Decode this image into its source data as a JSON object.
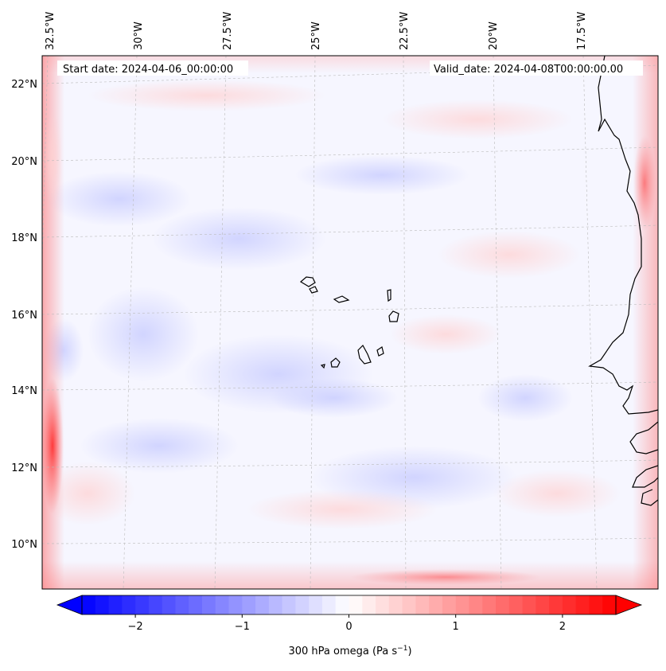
{
  "map": {
    "start_date": "Start date: 2024-04-06_00:00:00",
    "valid_date": "Valid_date: 2024-04-08T00:00:00.00",
    "lon_labels": [
      "32.5°W",
      "30°W",
      "27.5°W",
      "25°W",
      "22.5°W",
      "20°W",
      "17.5°W"
    ],
    "lat_labels": [
      "22°N",
      "20°N",
      "18°N",
      "16°N",
      "14°N",
      "12°N",
      "10°N"
    ],
    "field": "300 hPa omega"
  },
  "colorbar": {
    "label_main": "300 hPa omega (Pa s",
    "label_exp": "−1",
    "label_close": ")",
    "ticks": [
      "−2",
      "−1",
      "0",
      "1",
      "2"
    ],
    "tick_values": [
      -2,
      -1,
      0,
      1,
      2
    ],
    "vmin": -2.5,
    "vmax": 2.5,
    "min_color": "#0000ff",
    "mid_color": "#ffffff",
    "max_color": "#ff0000"
  },
  "colors": {
    "frame": "#000000",
    "coast": "#000000",
    "grid": "#bbbbbb"
  }
}
